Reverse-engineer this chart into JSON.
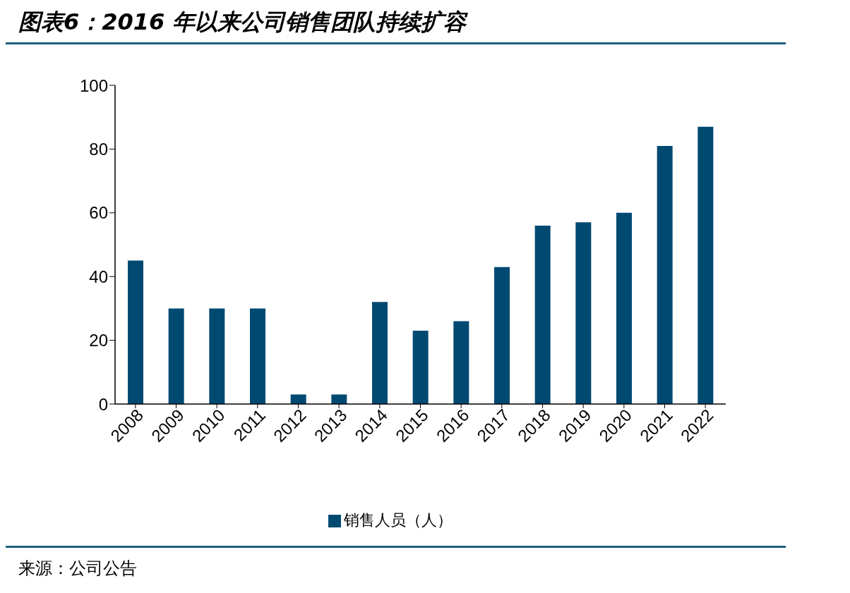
{
  "chart_data": {
    "type": "bar",
    "title": "图表6：2016 年以来公司销售团队持续扩容",
    "categories": [
      "2008",
      "2009",
      "2010",
      "2011",
      "2012",
      "2013",
      "2014",
      "2015",
      "2016",
      "2017",
      "2018",
      "2019",
      "2020",
      "2021",
      "2022"
    ],
    "series": [
      {
        "name": "销售人员（人）",
        "color": "#004a72",
        "values": [
          45,
          30,
          30,
          30,
          3,
          3,
          32,
          23,
          26,
          43,
          56,
          57,
          60,
          81,
          87
        ]
      }
    ],
    "ylim": [
      0,
      100
    ],
    "yticks": [
      0,
      20,
      40,
      60,
      80,
      100
    ],
    "grid": false,
    "legend": "bottom",
    "annotations": [
      "来源：公司公告"
    ]
  }
}
